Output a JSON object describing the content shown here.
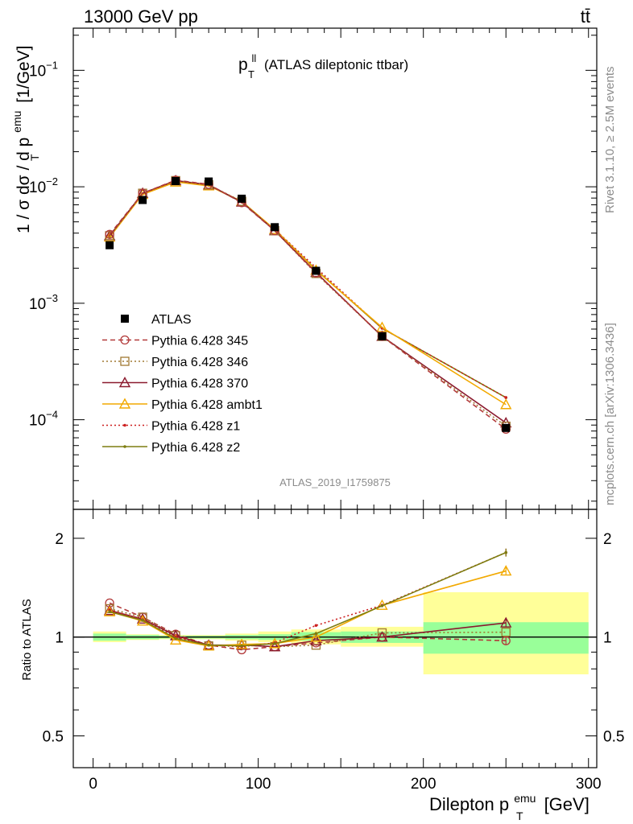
{
  "header": {
    "energy_label": "13000 GeV pp",
    "process_label": "tt̄"
  },
  "side_labels": {
    "rivet": "Rivet 3.1.10, ≥ 2.5M events",
    "mcplots": "mcplots.cern.ch [arXiv:1306.3436]"
  },
  "colors": {
    "data": "#000000",
    "band_inner": "#99ff99",
    "band_outer": "#ffff99"
  },
  "chart_data": [
    {
      "type": "line",
      "panel": "main",
      "title": "p_T^ll (ATLAS dileptonic ttbar)",
      "title_main": "p",
      "title_sup": "ll",
      "title_sub": "T",
      "title_rest": "(ATLAS dileptonic ttbar)",
      "analysis_label": "ATLAS_2019_I1759875",
      "ylabel": "1 / σ  dσ / d p_T^emu [1/GeV]",
      "ylabel_parts": {
        "pre": "1 / σ  dσ / d p",
        "sup": "emu",
        "sub": "T",
        "post": "[1/GeV]"
      },
      "yscale": "log",
      "xlim": [
        -12,
        305
      ],
      "ylim": [
        1.7e-05,
        0.23
      ],
      "ytick_labels": [
        {
          "value": 0.1,
          "base": "10",
          "exp": "−1"
        },
        {
          "value": 0.01,
          "base": "10",
          "exp": "−2"
        },
        {
          "value": 0.001,
          "base": "10",
          "exp": "−3"
        },
        {
          "value": 0.0001,
          "base": "10",
          "exp": "−4"
        }
      ],
      "x": [
        10,
        30,
        50,
        70,
        90,
        110,
        135,
        175,
        250
      ],
      "x_bin_edges": [
        0,
        20,
        40,
        60,
        80,
        100,
        120,
        150,
        200,
        300
      ],
      "legend_position": "middle-left",
      "series": [
        {
          "name": "ATLAS",
          "style": "data",
          "color": "#000000",
          "values": [
            0.00315,
            0.0077,
            0.0112,
            0.0111,
            0.0079,
            0.0045,
            0.0019,
            0.00052,
            8.5e-05
          ]
        },
        {
          "name": "Pythia 6.428 345",
          "style": "circle-dashed",
          "color": "#b23a3a",
          "values": [
            0.0039,
            0.0088,
            0.0114,
            0.0105,
            0.0073,
            0.0042,
            0.00182,
            0.00052,
            8.3e-05
          ]
        },
        {
          "name": "Pythia 6.428 346",
          "style": "square-dotted",
          "color": "#a07832",
          "values": [
            0.0038,
            0.0088,
            0.0113,
            0.0104,
            0.0075,
            0.0042,
            0.0018,
            0.00052,
            8.8e-05
          ]
        },
        {
          "name": "Pythia 6.428 370",
          "style": "triangle-solid",
          "color": "#8b1a2e",
          "values": [
            0.0038,
            0.0088,
            0.0113,
            0.0104,
            0.0074,
            0.0042,
            0.00184,
            0.00052,
            9.4e-05
          ]
        },
        {
          "name": "Pythia 6.428 ambt1",
          "style": "triangle-solid",
          "color": "#f2a900",
          "values": [
            0.0037,
            0.0086,
            0.011,
            0.0102,
            0.0075,
            0.0043,
            0.00192,
            0.00062,
            0.000135
          ]
        },
        {
          "name": "Pythia 6.428 z1",
          "style": "dot-dotted",
          "color": "#cc1f1f",
          "values": [
            0.0038,
            0.0087,
            0.0112,
            0.0103,
            0.0074,
            0.0043,
            0.00202,
            0.00061,
            0.000155
          ]
        },
        {
          "name": "Pythia 6.428 z2",
          "style": "dot-solid",
          "color": "#7d7d10",
          "values": [
            0.0037,
            0.0087,
            0.0111,
            0.0103,
            0.0074,
            0.0043,
            0.00194,
            0.00061,
            0.000155
          ]
        }
      ]
    },
    {
      "type": "line",
      "panel": "ratio",
      "ylabel": "Ratio to ATLAS",
      "xlabel": "Dilepton p_T^emu [GeV]",
      "xlabel_parts": {
        "pre": "Dilepton p",
        "sup": "emu",
        "sub": "T",
        "post": "[GeV]"
      },
      "yscale": "log",
      "xlim": [
        -12,
        305
      ],
      "ylim": [
        0.4,
        2.45
      ],
      "xtick_labels": [
        0,
        100,
        200,
        300
      ],
      "ytick_labels": [
        0.5,
        1,
        2
      ],
      "x": [
        10,
        30,
        50,
        70,
        90,
        110,
        135,
        175,
        250
      ],
      "uncertainty_bands": [
        {
          "x_range": [
            0,
            20
          ],
          "inner": [
            0.975,
            1.025
          ],
          "outer": [
            0.965,
            1.04
          ]
        },
        {
          "x_range": [
            20,
            40
          ],
          "inner": [
            0.985,
            1.015
          ],
          "outer": [
            0.98,
            1.02
          ]
        },
        {
          "x_range": [
            40,
            60
          ],
          "inner": [
            0.99,
            1.01
          ],
          "outer": [
            0.985,
            1.015
          ]
        },
        {
          "x_range": [
            60,
            80
          ],
          "inner": [
            0.99,
            1.01
          ],
          "outer": [
            0.985,
            1.015
          ]
        },
        {
          "x_range": [
            80,
            100
          ],
          "inner": [
            0.985,
            1.015
          ],
          "outer": [
            0.975,
            1.025
          ]
        },
        {
          "x_range": [
            100,
            120
          ],
          "inner": [
            0.98,
            1.02
          ],
          "outer": [
            0.965,
            1.04
          ]
        },
        {
          "x_range": [
            120,
            150
          ],
          "inner": [
            0.975,
            1.035
          ],
          "outer": [
            0.95,
            1.055
          ]
        },
        {
          "x_range": [
            150,
            200
          ],
          "inner": [
            0.96,
            1.04
          ],
          "outer": [
            0.935,
            1.075
          ]
        },
        {
          "x_range": [
            200,
            300
          ],
          "inner": [
            0.89,
            1.11
          ],
          "outer": [
            0.77,
            1.37
          ]
        }
      ],
      "series": [
        {
          "name": "Pythia 6.428 345",
          "style": "circle-dashed",
          "color": "#b23a3a",
          "values": [
            1.27,
            1.15,
            1.02,
            0.945,
            0.915,
            0.935,
            0.96,
            1.0,
            0.975
          ],
          "errors": [
            0,
            0,
            0,
            0,
            0,
            0,
            0,
            0,
            0.03
          ]
        },
        {
          "name": "Pythia 6.428 346",
          "style": "square-dotted",
          "color": "#a07832",
          "values": [
            1.22,
            1.15,
            1.01,
            0.94,
            0.945,
            0.935,
            0.945,
            1.03,
            1.035
          ]
        },
        {
          "name": "Pythia 6.428 370",
          "style": "triangle-solid",
          "color": "#8b1a2e",
          "values": [
            1.205,
            1.135,
            1.01,
            0.945,
            0.945,
            0.935,
            0.975,
            1.0,
            1.105
          ],
          "errors": [
            0,
            0,
            0,
            0,
            0,
            0,
            0,
            0,
            0.03
          ]
        },
        {
          "name": "Pythia 6.428 ambt1",
          "style": "triangle-solid",
          "color": "#f2a900",
          "values": [
            1.195,
            1.12,
            0.98,
            0.94,
            0.95,
            0.955,
            1.0,
            1.25,
            1.59
          ],
          "errors": [
            0,
            0,
            0,
            0,
            0,
            0,
            0,
            0,
            0.045
          ]
        },
        {
          "name": "Pythia 6.428 z1",
          "style": "dot-dotted",
          "color": "#cc1f1f",
          "values": [
            1.21,
            1.13,
            1.0,
            0.945,
            0.935,
            0.96,
            1.085,
            1.25,
            1.81
          ],
          "errors": [
            0,
            0,
            0,
            0,
            0,
            0,
            0,
            0,
            0.05
          ]
        },
        {
          "name": "Pythia 6.428 z2",
          "style": "dot-solid",
          "color": "#7d7d10",
          "values": [
            1.195,
            1.125,
            0.99,
            0.945,
            0.94,
            0.955,
            1.025,
            1.245,
            1.81
          ],
          "errors": [
            0,
            0,
            0,
            0,
            0,
            0,
            0,
            0,
            0.05
          ]
        }
      ]
    }
  ]
}
